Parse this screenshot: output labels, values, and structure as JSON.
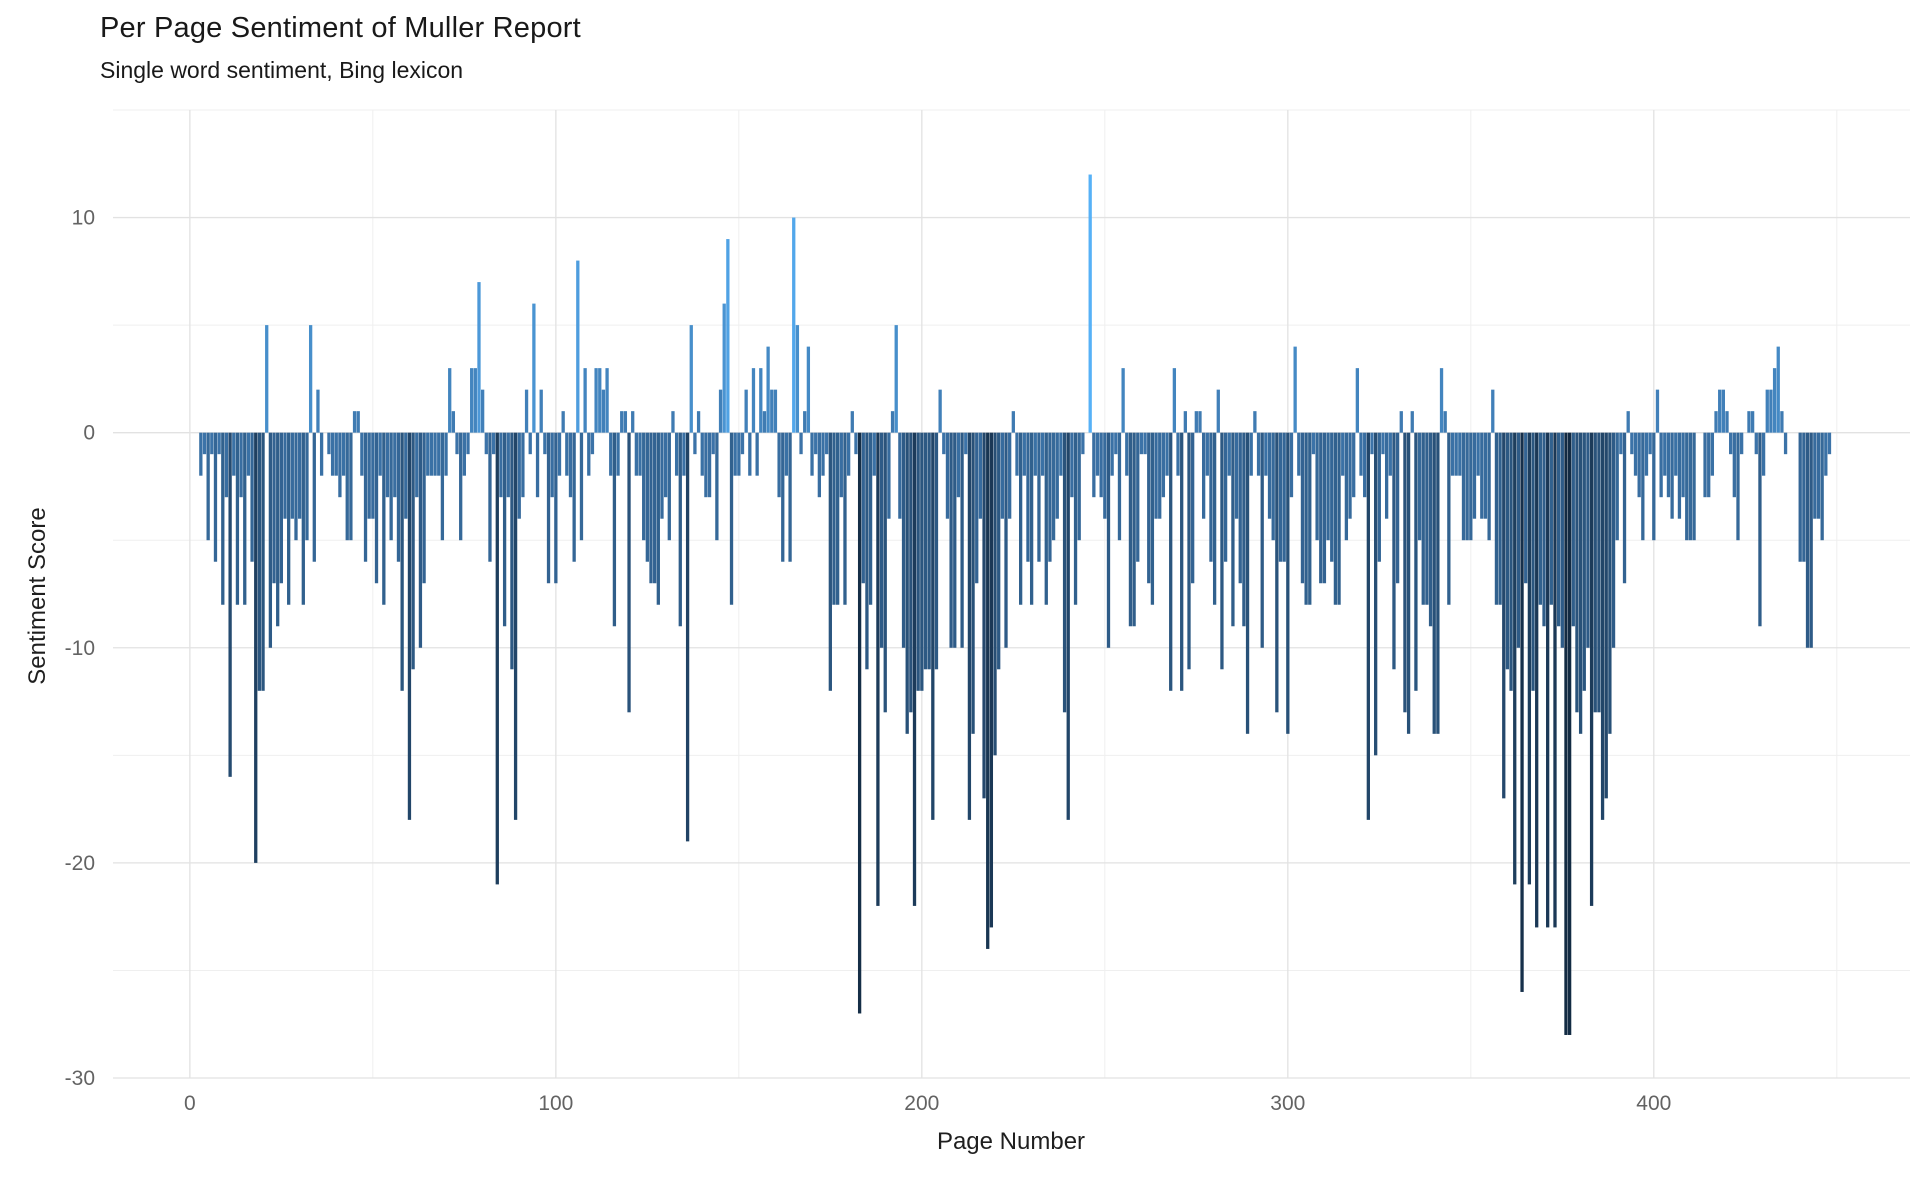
{
  "title": "Per Page Sentiment of Muller Report",
  "subtitle": "Single word sentiment, Bing lexicon",
  "chart_data": {
    "type": "bar",
    "title": "Per Page Sentiment of Muller Report",
    "subtitle": "Single word sentiment, Bing lexicon",
    "xlabel": "Page Number",
    "ylabel": "Sentiment Score",
    "xlim": [
      -21,
      470
    ],
    "ylim": [
      -30,
      15
    ],
    "x_major_ticks": [
      0,
      100,
      200,
      300,
      400
    ],
    "x_minor_gridlines": [
      50,
      150,
      250,
      350,
      450
    ],
    "y_major_ticks": [
      10,
      0,
      -10,
      -20,
      -30
    ],
    "y_minor_gridlines": [
      15,
      5,
      -5,
      -15,
      -25
    ],
    "grid": "white panel, light gray major+minor gridlines, no axis lines (theme_minimal)",
    "legend": "none",
    "bar_width_fraction": 0.9,
    "color_gradient_stops": [
      {
        "value": -28,
        "color": "#132B43"
      },
      {
        "value": 0,
        "color": "#3D76AC"
      },
      {
        "value": 12,
        "color": "#56B1F7"
      }
    ],
    "x_start_page": 1,
    "values": [
      0,
      0,
      -2,
      -1,
      -5,
      -1,
      -6,
      -1,
      -8,
      -3,
      -16,
      -2,
      -8,
      -3,
      -8,
      -2,
      -6,
      -20,
      -12,
      -12,
      5,
      -10,
      -7,
      -9,
      -7,
      -4,
      -8,
      -4,
      -5,
      -4,
      -8,
      -5,
      5,
      -6,
      2,
      -2,
      0,
      -1,
      -2,
      -2,
      -3,
      -2,
      -5,
      -5,
      1,
      1,
      -2,
      -6,
      -4,
      -4,
      -7,
      -2,
      -8,
      -3,
      -5,
      -3,
      -6,
      -12,
      -4,
      -18,
      -11,
      -3,
      -10,
      -7,
      -2,
      -2,
      -2,
      -2,
      -5,
      -2,
      3,
      1,
      -1,
      -5,
      -2,
      -1,
      3,
      3,
      7,
      2,
      -1,
      -6,
      -1,
      -21,
      -3,
      -9,
      -3,
      -11,
      -18,
      -4,
      -3,
      2,
      -1,
      6,
      -3,
      2,
      -1,
      -7,
      -3,
      -7,
      -2,
      1,
      -2,
      -3,
      -6,
      8,
      -5,
      3,
      -2,
      -1,
      3,
      3,
      2,
      3,
      -2,
      -9,
      -2,
      1,
      1,
      -13,
      1,
      -2,
      -2,
      -5,
      -6,
      -7,
      -7,
      -8,
      -4,
      -3,
      -5,
      1,
      -2,
      -9,
      -2,
      -19,
      5,
      -1,
      1,
      -2,
      -3,
      -3,
      -1,
      -5,
      2,
      6,
      9,
      -8,
      -2,
      -2,
      -1,
      2,
      -2,
      3,
      -2,
      3,
      1,
      4,
      2,
      2,
      -3,
      -6,
      -2,
      -6,
      10,
      5,
      -1,
      1,
      4,
      -2,
      -1,
      -3,
      -2,
      -1,
      -12,
      -8,
      -8,
      -3,
      -8,
      -2,
      1,
      -1,
      -27,
      -7,
      -11,
      -8,
      -2,
      -22,
      -10,
      -13,
      -4,
      1,
      5,
      -4,
      -10,
      -14,
      -13,
      -22,
      -12,
      -12,
      -11,
      -11,
      -18,
      -11,
      2,
      -1,
      -4,
      -10,
      -10,
      -3,
      -10,
      -1,
      -18,
      -14,
      -7,
      -4,
      -17,
      -24,
      -23,
      -15,
      -11,
      -4,
      -10,
      -4,
      1,
      -2,
      -8,
      -2,
      -6,
      -8,
      -2,
      -6,
      -2,
      -8,
      -6,
      -5,
      -4,
      -2,
      -13,
      -18,
      -3,
      -8,
      -5,
      -1,
      0,
      12,
      -3,
      -2,
      -3,
      -4,
      -10,
      -2,
      -1,
      -5,
      3,
      -2,
      -9,
      -9,
      -6,
      -1,
      -1,
      -7,
      -8,
      -4,
      -4,
      -3,
      -2,
      -12,
      3,
      -2,
      -12,
      1,
      -11,
      -7,
      1,
      1,
      -4,
      -2,
      -6,
      -8,
      2,
      -11,
      -6,
      -2,
      -9,
      -4,
      -7,
      -9,
      -14,
      -2,
      1,
      -2,
      -10,
      -2,
      -4,
      -5,
      -13,
      -6,
      -6,
      -14,
      -3,
      4,
      -2,
      -7,
      -8,
      -8,
      -1,
      -5,
      -7,
      -7,
      -5,
      -6,
      -8,
      -8,
      -2,
      -5,
      -4,
      -3,
      3,
      -2,
      -3,
      -18,
      -1,
      -15,
      -6,
      -1,
      -4,
      -2,
      -11,
      -7,
      1,
      -13,
      -14,
      1,
      -12,
      -5,
      -8,
      -8,
      -9,
      -14,
      -14,
      3,
      1,
      -8,
      -2,
      -2,
      -2,
      -5,
      -5,
      -5,
      -4,
      -2,
      -4,
      -4,
      -5,
      2,
      -8,
      -8,
      -17,
      -11,
      -12,
      -21,
      -10,
      -26,
      -7,
      -21,
      -12,
      -23,
      -8,
      -9,
      -23,
      -8,
      -23,
      -9,
      -10,
      -28,
      -28,
      -9,
      -13,
      -14,
      -12,
      -10,
      -22,
      -13,
      -13,
      -18,
      -17,
      -14,
      -10,
      -5,
      -1,
      -7,
      1,
      -1,
      -2,
      -3,
      -5,
      -2,
      -1,
      -5,
      2,
      -3,
      -2,
      -3,
      -4,
      -2,
      -4,
      -3,
      -5,
      -5,
      -5,
      0,
      0,
      -3,
      -3,
      -2,
      1,
      2,
      2,
      1,
      -1,
      -3,
      -5,
      -1,
      0,
      1,
      1,
      -1,
      -9,
      -2,
      2,
      2,
      3,
      4,
      1,
      -1,
      0,
      0,
      0,
      -6,
      -6,
      -10,
      -10,
      -4,
      -4,
      -5,
      -2,
      -1
    ]
  },
  "colors": {
    "background": "#ffffff",
    "grid_major": "#e2e2e2",
    "grid_minor": "#efefef",
    "tick_label": "#636363",
    "axis_title": "#1f1f1f",
    "title_text": "#191919"
  }
}
